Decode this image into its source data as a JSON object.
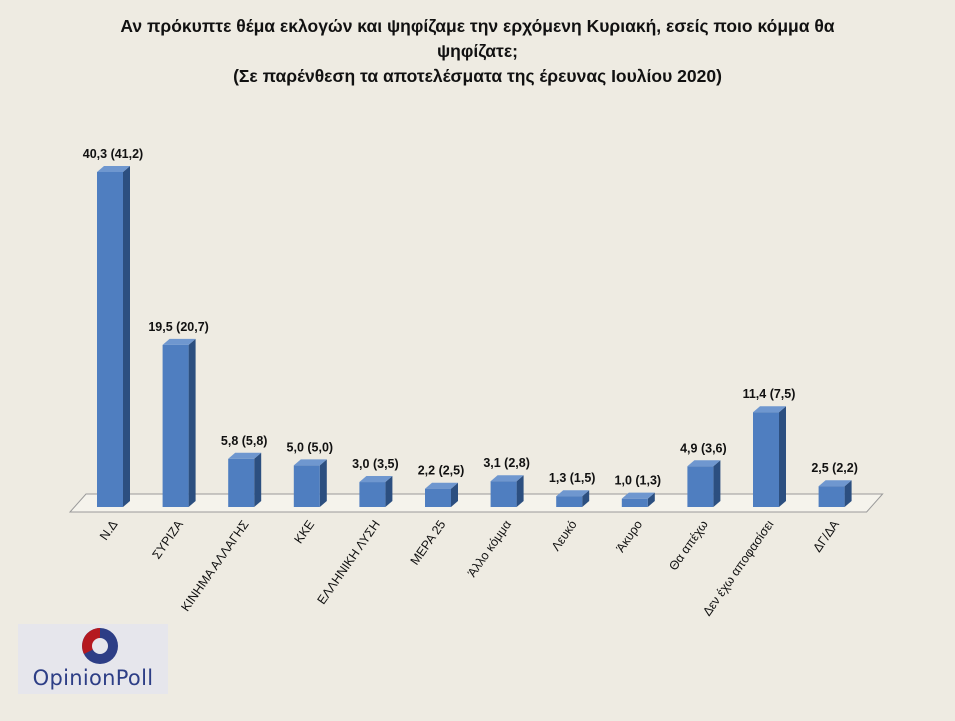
{
  "chart_data": {
    "type": "bar",
    "title_lines": [
      "Αν πρόκυπτε θέμα εκλογών και ψηφίζαμε την ερχόμενη Κυριακή, εσείς ποιο κόμμα θα",
      "ψηφίζατε;",
      "(Σε παρένθεση τα αποτελέσματα της έρευνας Ιουλίου 2020)"
    ],
    "categories": [
      "Ν.Δ",
      "ΣΥΡΙΖΑ",
      "ΚΙΝΗΜΑ ΑΛΛΑΓΗΣ",
      "ΚΚΕ",
      "ΕΛΛΗΝΙΚΗ ΛΥΣΗ",
      "ΜΕΡΑ 25",
      "Άλλο κόμμα",
      "Λευκό",
      "Άκυρο",
      "Θα απέχω",
      "Δεν έχω αποφασίσει",
      "ΔΓ/ΔΑ"
    ],
    "values": [
      40.3,
      19.5,
      5.8,
      5.0,
      3.0,
      2.2,
      3.1,
      1.3,
      1.0,
      4.9,
      11.4,
      2.5
    ],
    "previous_values": [
      41.2,
      20.7,
      5.8,
      5.0,
      3.5,
      2.5,
      2.8,
      1.5,
      1.3,
      3.6,
      7.5,
      2.2
    ],
    "data_labels": [
      "40,3 (41,2)",
      "19,5 (20,7)",
      "5,8 (5,8)",
      "5,0 (5,0)",
      "3,0 (3,5)",
      "2,2 (2,5)",
      "3,1 (2,8)",
      "1,3 (1,5)",
      "1,0 (1,3)",
      "4,9 (3,6)",
      "11,4 (7,5)",
      "2,5 (2,2)"
    ],
    "ylim": [
      0,
      42
    ],
    "grid": false,
    "legend": "none",
    "bar_color": "#4f7ec0",
    "bar_side_color": "#2c4f80",
    "bar_top_color": "#6f97cf",
    "floor_color": "#f5f3ec",
    "floor_edge_color": "#9a9a9a"
  },
  "logo": {
    "text": "OpinionPoll",
    "text_color": "#2d3e86",
    "mark_red": "#b5191f",
    "mark_blue": "#2d3e86"
  }
}
